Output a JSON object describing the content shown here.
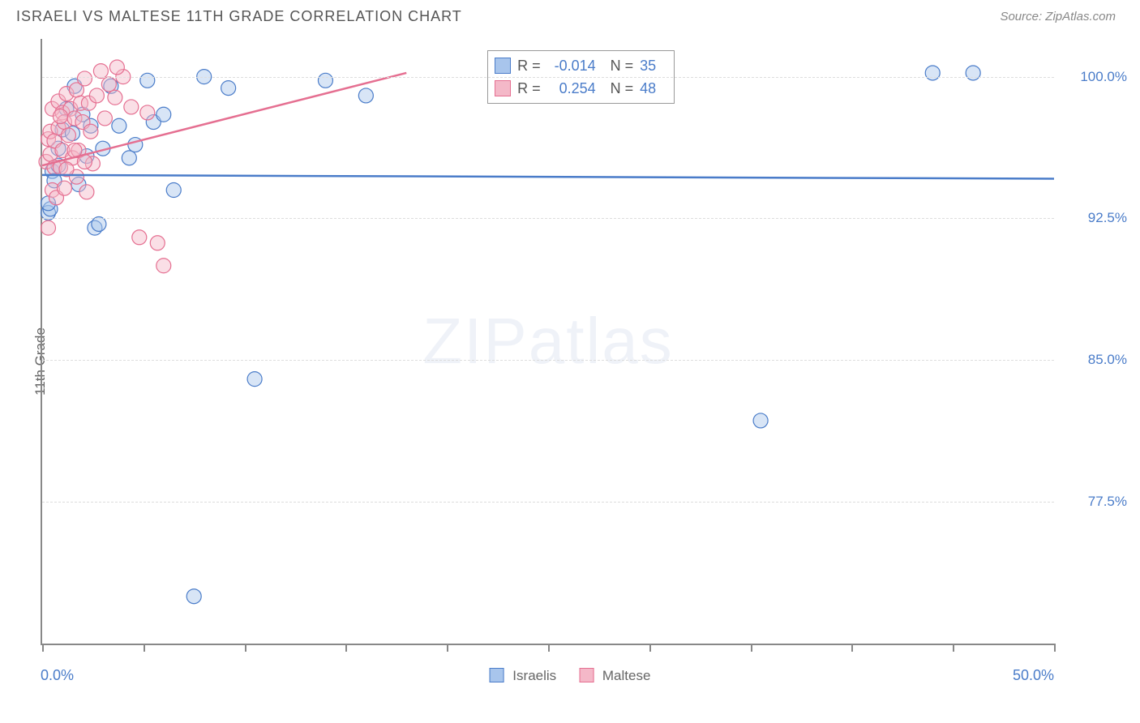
{
  "title": "ISRAELI VS MALTESE 11TH GRADE CORRELATION CHART",
  "source": "Source: ZipAtlas.com",
  "watermark_main": "ZIP",
  "watermark_sub": "atlas",
  "chart": {
    "type": "scatter",
    "background_color": "#ffffff",
    "grid_color": "#dddddd",
    "axis_color": "#888888",
    "y_axis_title": "11th Grade",
    "x_range": [
      0,
      50
    ],
    "y_range": [
      70,
      102
    ],
    "x_ticks": [
      0,
      5,
      10,
      15,
      20,
      25,
      30,
      35,
      40,
      45,
      50
    ],
    "x_tick_labels": {
      "0": "0.0%",
      "50": "50.0%"
    },
    "y_gridlines": [
      77.5,
      85.0,
      92.5,
      100.0
    ],
    "y_tick_labels": {
      "77.5": "77.5%",
      "85.0": "85.0%",
      "92.5": "92.5%",
      "100.0": "100.0%"
    },
    "marker_radius": 9,
    "marker_opacity": 0.45,
    "line_width": 2.5,
    "series": [
      {
        "name": "Israelis",
        "color_fill": "#a8c5ec",
        "color_stroke": "#4a7cc9",
        "legend_label": "Israelis",
        "correlation_R": "-0.014",
        "correlation_N": "35",
        "trend_line": {
          "x1": 0,
          "y1": 94.8,
          "x2": 50,
          "y2": 94.6
        },
        "points": [
          [
            0.3,
            92.8
          ],
          [
            0.4,
            93.0
          ],
          [
            0.5,
            95.0
          ],
          [
            0.6,
            94.5
          ],
          [
            0.8,
            96.2
          ],
          [
            0.8,
            95.3
          ],
          [
            1.0,
            97.2
          ],
          [
            1.2,
            98.3
          ],
          [
            1.5,
            97.0
          ],
          [
            1.6,
            99.5
          ],
          [
            1.8,
            94.3
          ],
          [
            2.0,
            98.0
          ],
          [
            2.2,
            95.8
          ],
          [
            2.4,
            97.4
          ],
          [
            2.6,
            92.0
          ],
          [
            2.8,
            92.2
          ],
          [
            3.0,
            96.2
          ],
          [
            3.4,
            99.5
          ],
          [
            3.8,
            97.4
          ],
          [
            4.3,
            95.7
          ],
          [
            4.6,
            96.4
          ],
          [
            5.2,
            99.8
          ],
          [
            5.5,
            97.6
          ],
          [
            6.0,
            98.0
          ],
          [
            6.5,
            94.0
          ],
          [
            8.0,
            100.0
          ],
          [
            9.2,
            99.4
          ],
          [
            10.5,
            84.0
          ],
          [
            7.5,
            72.5
          ],
          [
            14.0,
            99.8
          ],
          [
            16.0,
            99.0
          ],
          [
            35.5,
            81.8
          ],
          [
            44.0,
            100.2
          ],
          [
            46.0,
            100.2
          ],
          [
            0.3,
            93.3
          ]
        ]
      },
      {
        "name": "Maltese",
        "color_fill": "#f4b8c8",
        "color_stroke": "#e56f91",
        "legend_label": "Maltese",
        "correlation_R": "0.254",
        "correlation_N": "48",
        "trend_line": {
          "x1": 0,
          "y1": 95.3,
          "x2": 18,
          "y2": 100.2
        },
        "points": [
          [
            0.2,
            95.5
          ],
          [
            0.3,
            96.7
          ],
          [
            0.4,
            97.1
          ],
          [
            0.4,
            95.9
          ],
          [
            0.5,
            98.3
          ],
          [
            0.5,
            94.0
          ],
          [
            0.6,
            96.6
          ],
          [
            0.6,
            95.2
          ],
          [
            0.7,
            93.6
          ],
          [
            0.8,
            98.7
          ],
          [
            0.8,
            97.3
          ],
          [
            0.9,
            95.2
          ],
          [
            1.0,
            96.1
          ],
          [
            1.0,
            98.1
          ],
          [
            1.1,
            97.6
          ],
          [
            1.1,
            94.1
          ],
          [
            1.2,
            99.1
          ],
          [
            1.3,
            96.9
          ],
          [
            1.4,
            98.3
          ],
          [
            1.5,
            95.7
          ],
          [
            1.6,
            97.8
          ],
          [
            1.7,
            99.3
          ],
          [
            1.7,
            94.7
          ],
          [
            1.8,
            96.1
          ],
          [
            1.9,
            98.6
          ],
          [
            2.0,
            97.6
          ],
          [
            2.1,
            99.9
          ],
          [
            2.2,
            93.9
          ],
          [
            2.3,
            98.6
          ],
          [
            2.4,
            97.1
          ],
          [
            2.5,
            95.4
          ],
          [
            2.7,
            99.0
          ],
          [
            2.9,
            100.3
          ],
          [
            3.1,
            97.8
          ],
          [
            3.3,
            99.6
          ],
          [
            3.6,
            98.9
          ],
          [
            4.0,
            100.0
          ],
          [
            4.4,
            98.4
          ],
          [
            4.8,
            91.5
          ],
          [
            3.7,
            100.5
          ],
          [
            5.2,
            98.1
          ],
          [
            5.7,
            91.2
          ],
          [
            6.0,
            90.0
          ],
          [
            0.3,
            92.0
          ],
          [
            1.2,
            95.1
          ],
          [
            0.9,
            97.9
          ],
          [
            1.6,
            96.1
          ],
          [
            2.1,
            95.5
          ]
        ]
      }
    ]
  }
}
